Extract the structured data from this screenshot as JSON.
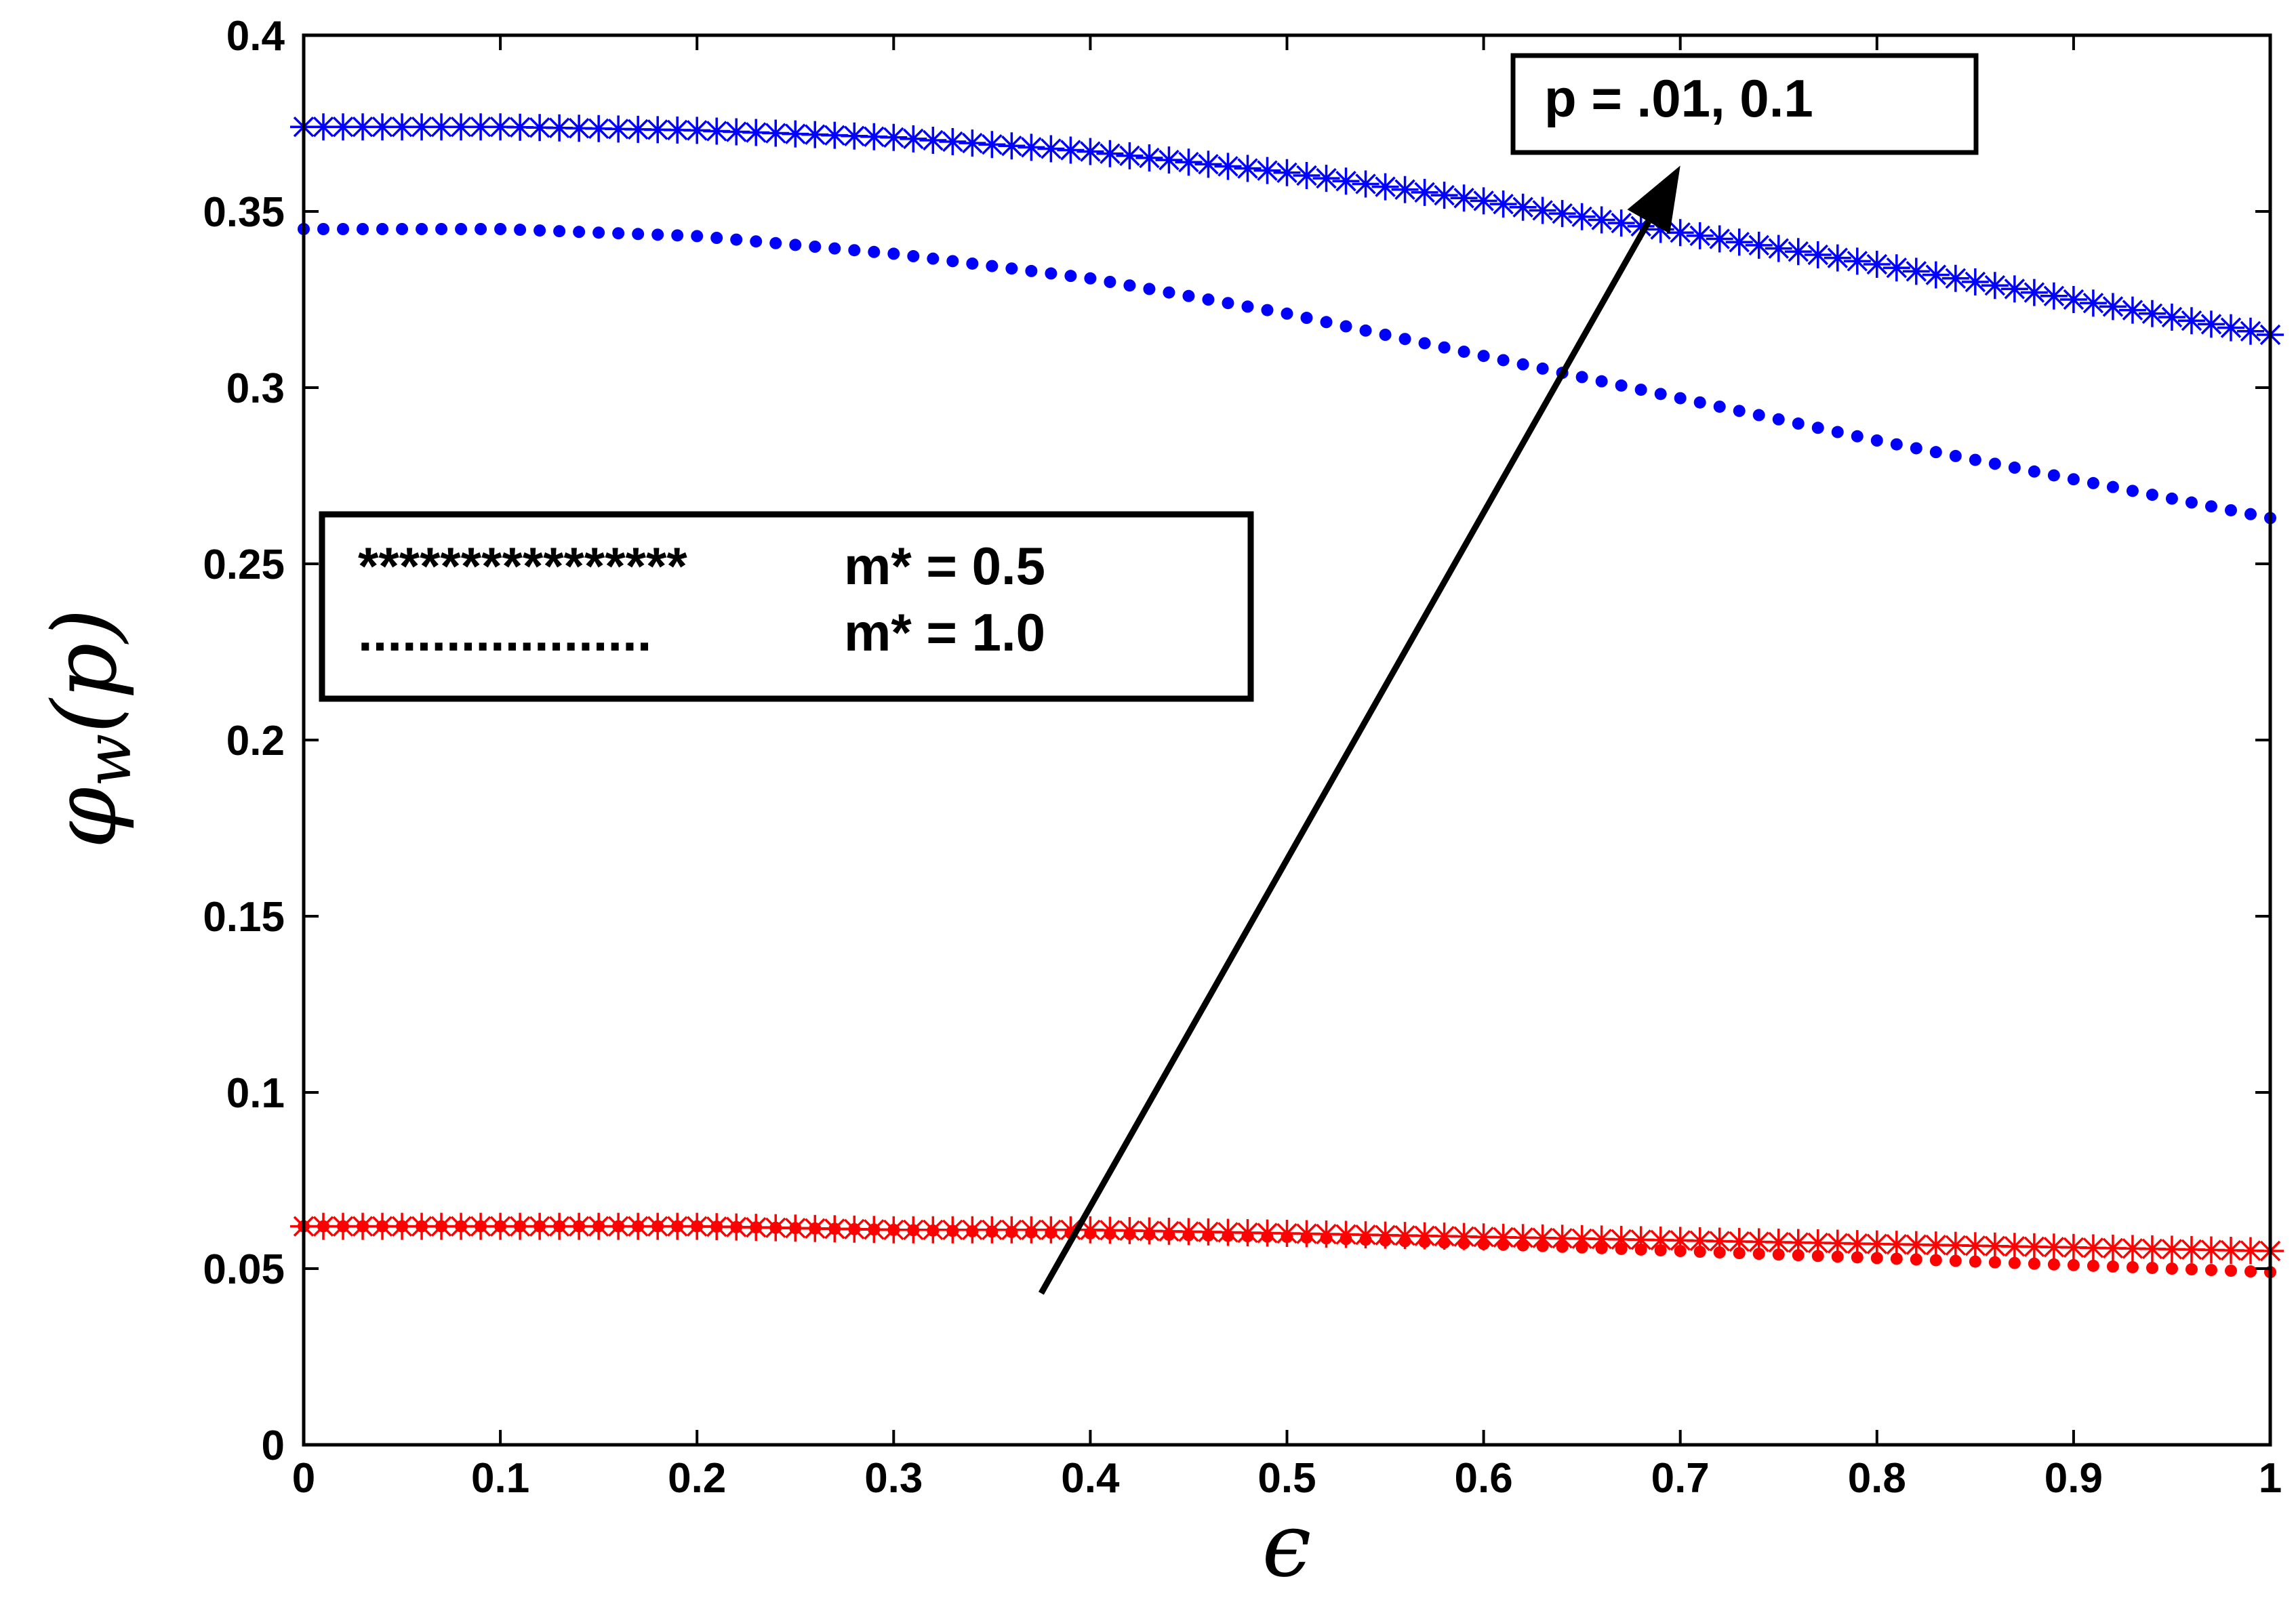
{
  "chart_data": {
    "type": "scatter",
    "xlabel": "ϵ",
    "ylabel_symbol": "φ",
    "ylabel_subscript": "w",
    "ylabel_arg": "(p)",
    "xlim": [
      0,
      1
    ],
    "ylim": [
      0,
      0.4
    ],
    "x_ticks": [
      "0",
      "0.1",
      "0.2",
      "0.3",
      "0.4",
      "0.5",
      "0.6",
      "0.7",
      "0.8",
      "0.9",
      "1"
    ],
    "y_ticks": [
      "0",
      "0.05",
      "0.1",
      "0.15",
      "0.2",
      "0.25",
      "0.3",
      "0.35",
      "0.4"
    ],
    "grid": false,
    "x": [
      0,
      0.1,
      0.2,
      0.3,
      0.4,
      0.5,
      0.6,
      0.7,
      0.8,
      0.9,
      1.0
    ],
    "series": [
      {
        "marker": "star",
        "color": "#0000ff",
        "values": [
          0.374,
          0.374,
          0.373,
          0.371,
          0.367,
          0.361,
          0.353,
          0.344,
          0.335,
          0.325,
          0.315
        ]
      },
      {
        "marker": "dot",
        "color": "#0000ff",
        "values": [
          0.345,
          0.345,
          0.343,
          0.338,
          0.331,
          0.321,
          0.309,
          0.297,
          0.285,
          0.274,
          0.263
        ]
      },
      {
        "marker": "star",
        "color": "#ff0000",
        "values": [
          0.062,
          0.062,
          0.062,
          0.061,
          0.061,
          0.06,
          0.059,
          0.058,
          0.057,
          0.056,
          0.055
        ]
      },
      {
        "marker": "dot",
        "color": "#ff0000",
        "values": [
          0.062,
          0.062,
          0.062,
          0.061,
          0.06,
          0.059,
          0.057,
          0.055,
          0.053,
          0.051,
          0.049
        ]
      }
    ],
    "annotations": {
      "p_label": "p = .01, 0.1",
      "arrow_from": [
        0.375,
        0.043
      ],
      "arrow_to": [
        0.7,
        0.363
      ]
    },
    "legend": {
      "placement": "center-left",
      "entries": [
        {
          "sample": "****************",
          "label": "m* = 0.5"
        },
        {
          "sample": "....................",
          "label": "m* = 1.0"
        }
      ]
    }
  }
}
